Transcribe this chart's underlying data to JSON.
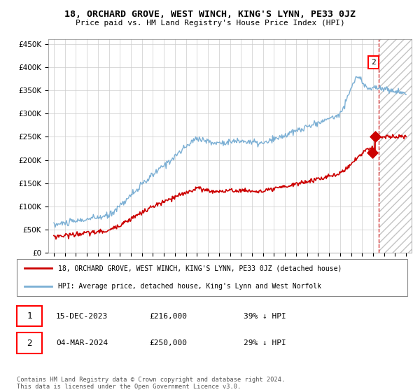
{
  "title": "18, ORCHARD GROVE, WEST WINCH, KING'S LYNN, PE33 0JZ",
  "subtitle": "Price paid vs. HM Land Registry's House Price Index (HPI)",
  "ylim": [
    0,
    460000
  ],
  "xlim_start": 1994.5,
  "xlim_end": 2027.5,
  "hpi_color": "#7bafd4",
  "price_color": "#cc0000",
  "sale1_date": "15-DEC-2023",
  "sale1_price": 216000,
  "sale1_hpi_pct": 216000,
  "sale1_label": "39% ↓ HPI",
  "sale2_date": "04-MAR-2024",
  "sale2_price": 250000,
  "sale2_label": "29% ↓ HPI",
  "sale1_x": 2023.96,
  "sale1_y": 216000,
  "sale2_x": 2024.17,
  "sale2_y": 250000,
  "vline_x": 2024.5,
  "future_start": 2024.5,
  "legend_label1": "18, ORCHARD GROVE, WEST WINCH, KING'S LYNN, PE33 0JZ (detached house)",
  "legend_label2": "HPI: Average price, detached house, King's Lynn and West Norfolk",
  "footer": "Contains HM Land Registry data © Crown copyright and database right 2024.\nThis data is licensed under the Open Government Licence v3.0."
}
